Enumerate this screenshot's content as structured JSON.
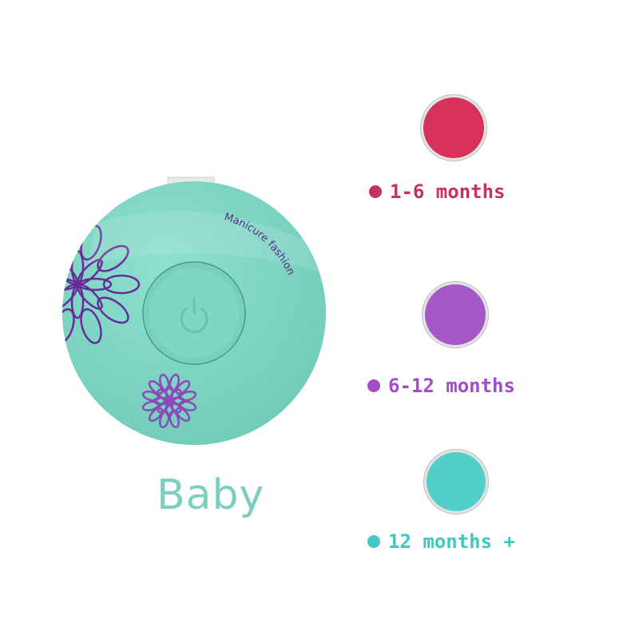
{
  "product": {
    "brand_text": "Manicure fashion",
    "caption": "Baby",
    "body_color": "#7fd4c3",
    "accent_color": "#6a2a9a",
    "icons": [
      "power-icon",
      "flower-icon"
    ]
  },
  "pads": [
    {
      "label": "1-6 months",
      "color": "#d7325c"
    },
    {
      "label": "6-12 months",
      "color": "#a658c8"
    },
    {
      "label": "12 months +",
      "color": "#52cfc8"
    }
  ]
}
